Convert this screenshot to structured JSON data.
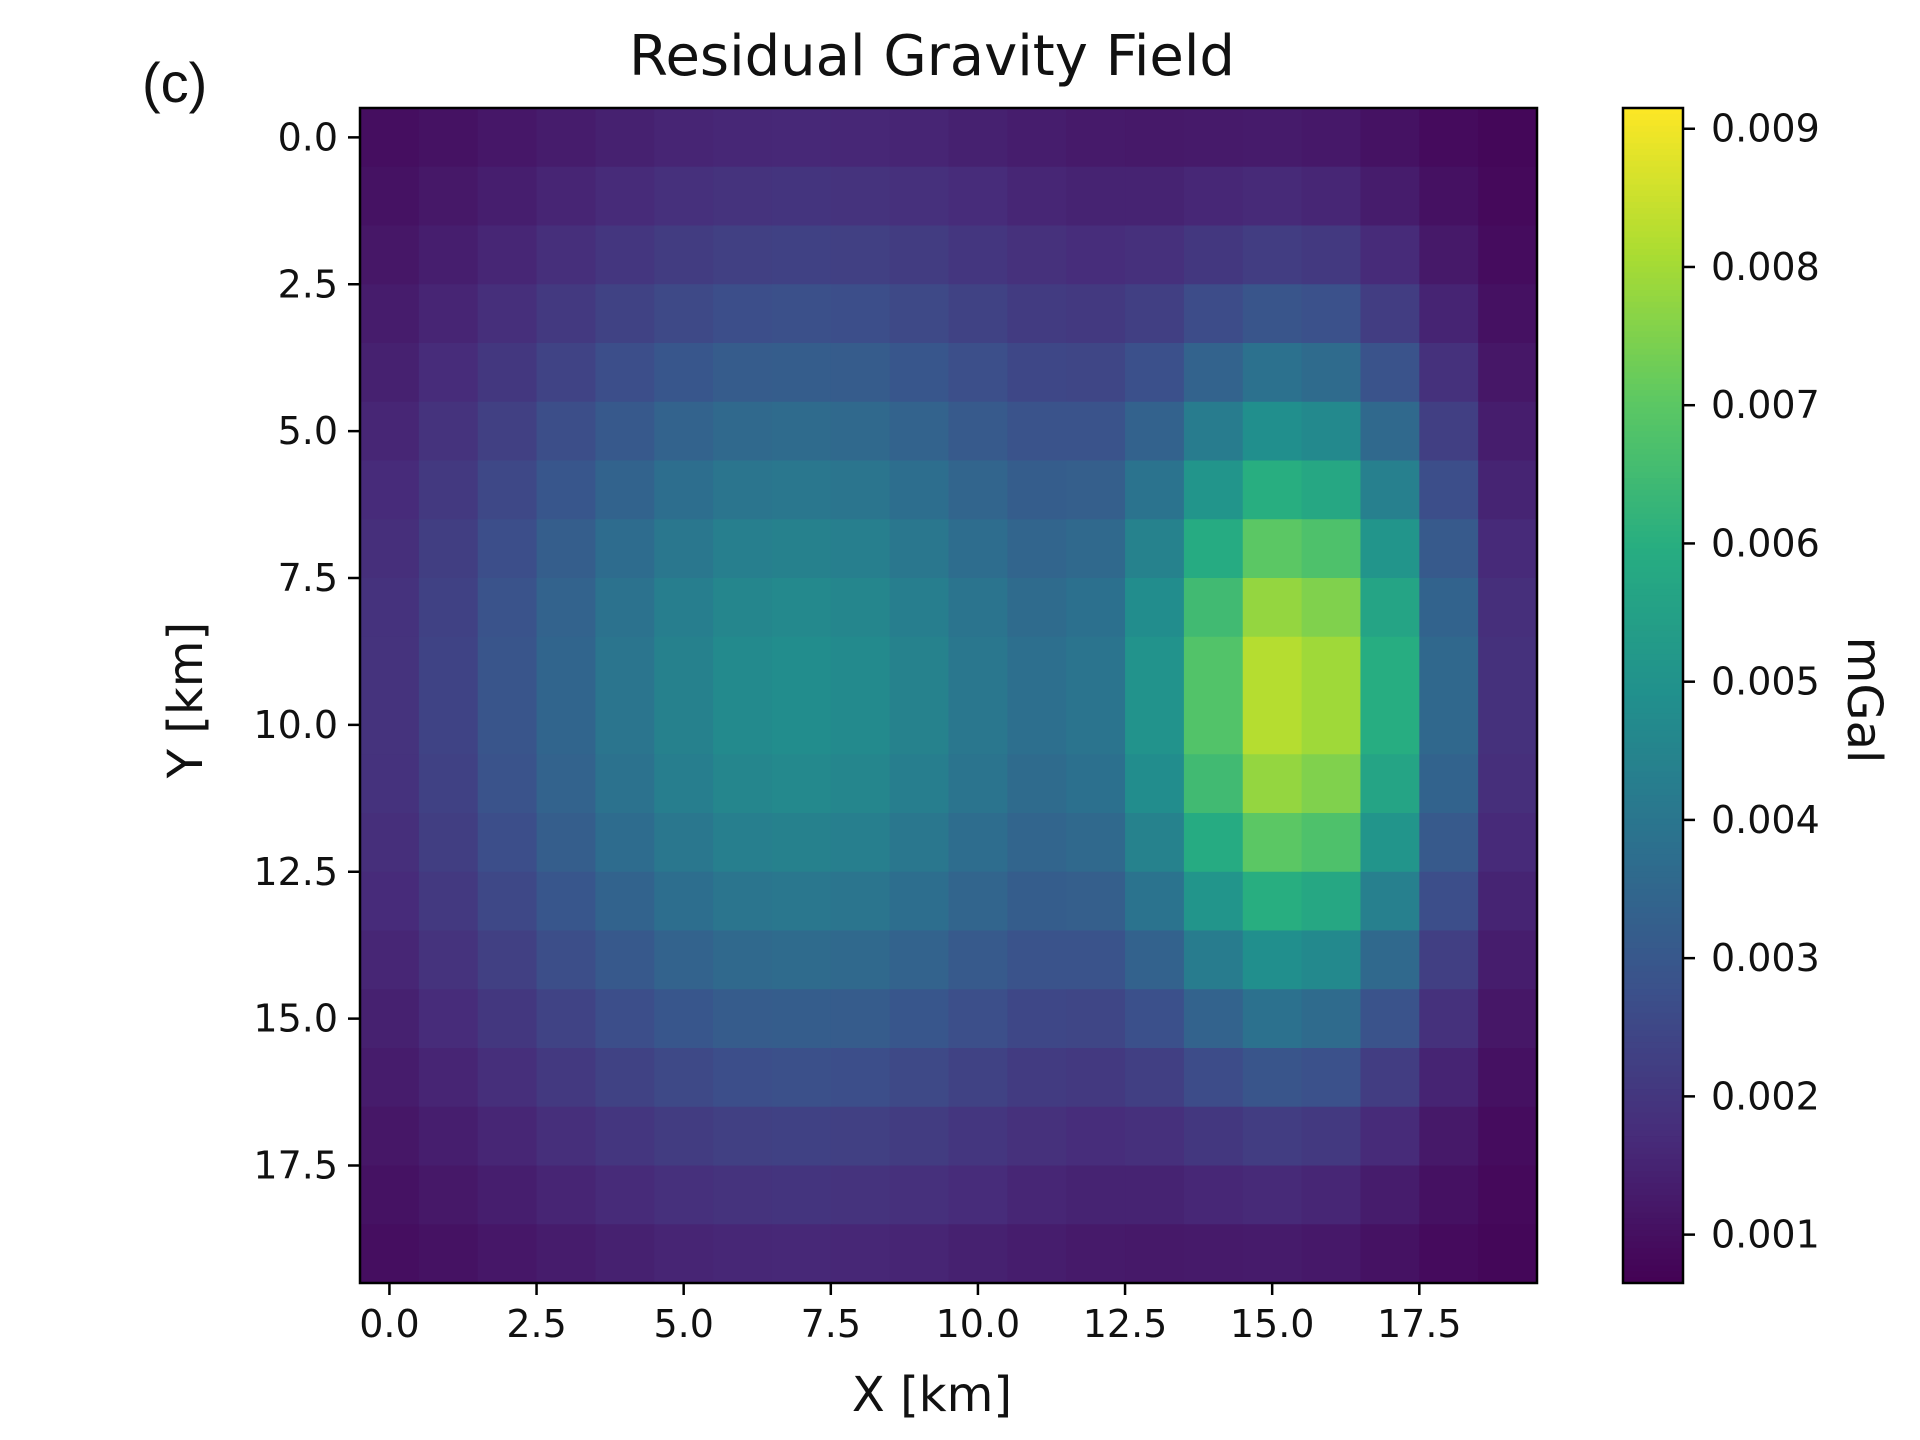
{
  "panel_label": "(c)",
  "chart_data": {
    "type": "heatmap",
    "title": "Residual Gravity Field",
    "xlabel": "X [km]",
    "ylabel": "Y [km]",
    "colorbar_label": "mGal",
    "colormap": "viridis",
    "x_ticks": [
      "0.0",
      "2.5",
      "5.0",
      "7.5",
      "10.0",
      "12.5",
      "15.0",
      "17.5"
    ],
    "y_ticks": [
      "0.0",
      "2.5",
      "5.0",
      "7.5",
      "10.0",
      "12.5",
      "15.0",
      "17.5"
    ],
    "colorbar_ticks": [
      "0.001",
      "0.002",
      "0.003",
      "0.004",
      "0.005",
      "0.006",
      "0.007",
      "0.008",
      "0.009"
    ],
    "colorbar_range": [
      0.00065,
      0.00915
    ],
    "grid_size": [
      20,
      20
    ],
    "xlim": [
      -0.5,
      19.5
    ],
    "ylim": [
      19.5,
      -0.5
    ],
    "grid": false,
    "anomalies": [
      {
        "center_x": 15.5,
        "center_y": 9.5,
        "sigma_x": 1.8,
        "sigma_y": 4.0,
        "peak_mgal": 0.007
      },
      {
        "center_x": 7.0,
        "center_y": 9.5,
        "sigma_x": 4.5,
        "sigma_y": 5.5,
        "peak_mgal": 0.0041
      }
    ],
    "background_mgal": 0.0007
  }
}
